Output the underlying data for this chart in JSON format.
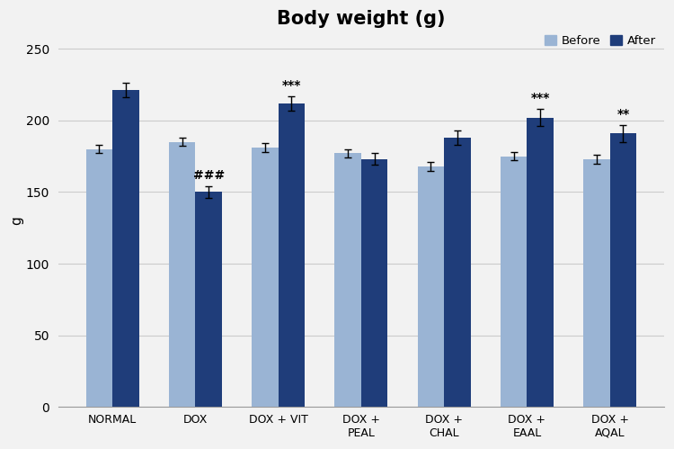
{
  "title": "Body weight (g)",
  "ylabel": "g",
  "ylim": [
    0,
    260
  ],
  "yticks": [
    0,
    50,
    100,
    150,
    200,
    250
  ],
  "categories": [
    "NORMAL",
    "DOX",
    "DOX + VIT",
    "DOX +\nPEAL",
    "DOX +\nCHAL",
    "DOX +\nEAAL",
    "DOX +\nAQAL"
  ],
  "before_values": [
    180,
    185,
    181,
    177,
    168,
    175,
    173
  ],
  "after_values": [
    221,
    150,
    212,
    173,
    188,
    202,
    191
  ],
  "before_sem": [
    3,
    3,
    3,
    3,
    3,
    3,
    3
  ],
  "after_sem": [
    5,
    4,
    5,
    4,
    5,
    6,
    6
  ],
  "color_before": "#9ab4d4",
  "color_after": "#1f3d7a",
  "bar_width": 0.32,
  "legend_labels": [
    "Before",
    "After"
  ],
  "annotations": [
    {
      "group": 1,
      "bar": "after",
      "text": "###",
      "fontsize": 10
    },
    {
      "group": 2,
      "bar": "after",
      "text": "***",
      "fontsize": 10
    },
    {
      "group": 5,
      "bar": "after",
      "text": "***",
      "fontsize": 10
    },
    {
      "group": 6,
      "bar": "after",
      "text": "**",
      "fontsize": 10
    }
  ],
  "grid_color": "#cccccc",
  "background_color": "#f2f2f2",
  "title_fontsize": 15,
  "tick_label_fontsize": 9
}
